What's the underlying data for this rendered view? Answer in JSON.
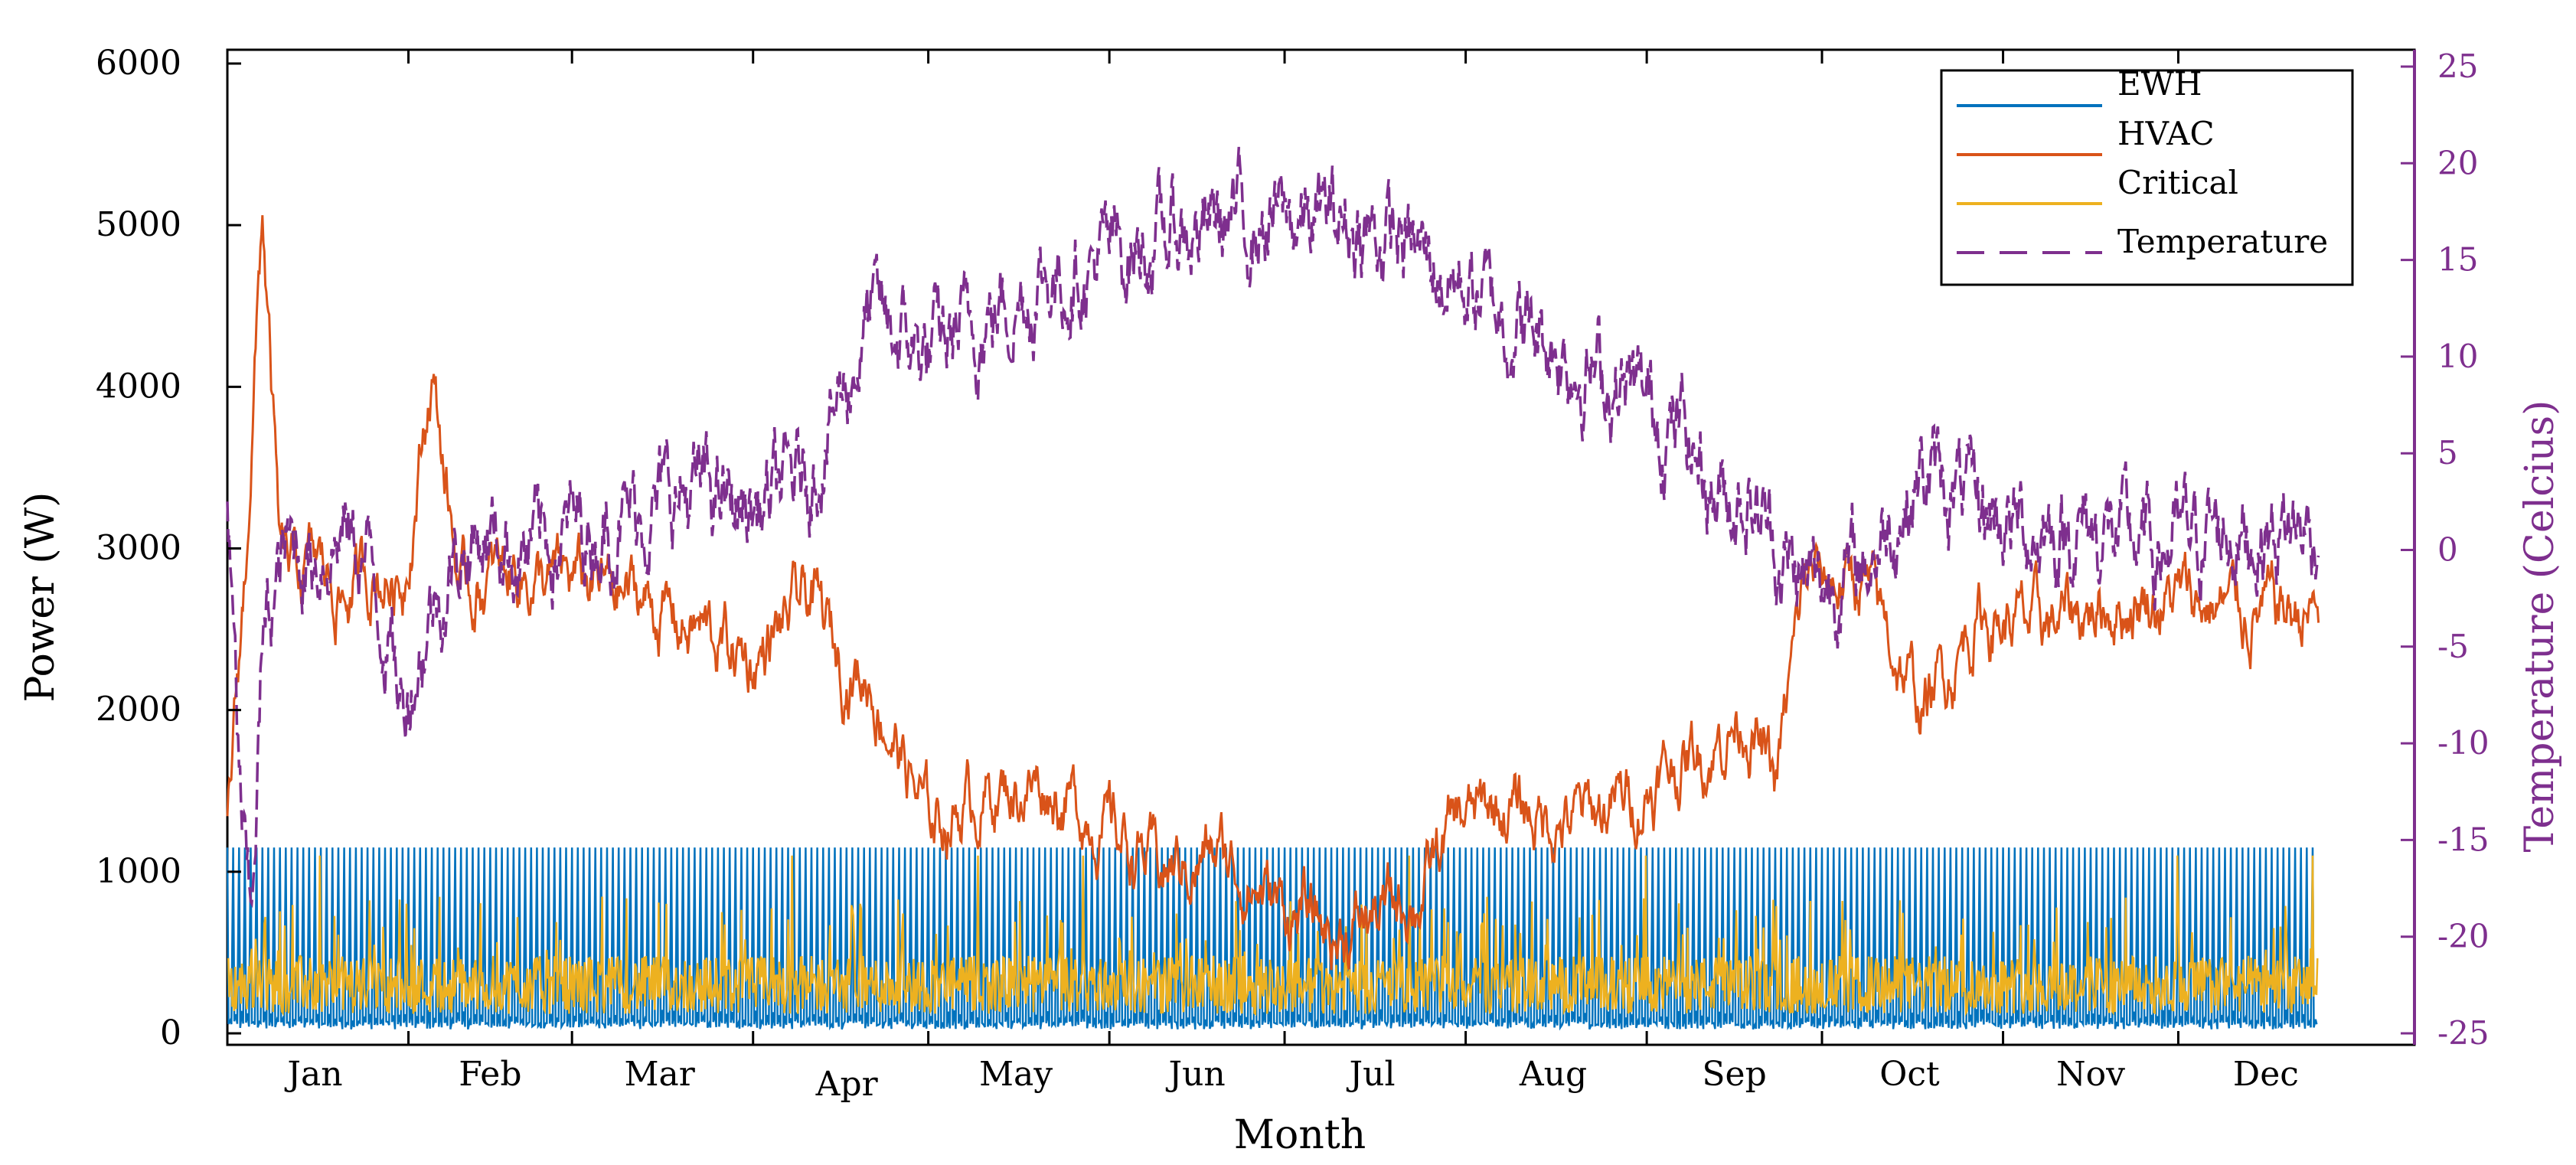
{
  "chart_data": {
    "type": "line",
    "title": "",
    "xlabel": "Month",
    "ylabel_left": "Power (W)",
    "ylabel_right": "Temperature (Celcius)",
    "ylim_left": [
      0,
      6000
    ],
    "ylim_right": [
      -25,
      25
    ],
    "left_ticks": [
      "0",
      "1000",
      "2000",
      "3000",
      "4000",
      "5000",
      "6000"
    ],
    "right_ticks": [
      "-25",
      "-20",
      "-15",
      "-10",
      "-5",
      "0",
      "5",
      "10",
      "15",
      "20",
      "25"
    ],
    "x_tick_labels": [
      "Jan",
      "Feb",
      "Mar",
      "Apr",
      "May",
      "Jun",
      "Jul",
      "Aug",
      "Sep",
      "Oct",
      "Nov",
      "Dec"
    ],
    "x_days": 365,
    "legend_position": "top-right",
    "colors": {
      "ewh": "#0072bd",
      "hvac": "#d95319",
      "critical": "#edb120",
      "temperature": "#7e2f8e",
      "right_axis": "#7e2f8e"
    },
    "series": [
      {
        "name": "EWH",
        "style": "solid",
        "axis": "left",
        "pattern": "daily spikes",
        "peak_value": 1150,
        "base_value": 50
      },
      {
        "name": "HVAC",
        "style": "solid",
        "axis": "left",
        "day": [
          0,
          3,
          6,
          9,
          12,
          15,
          20,
          25,
          30,
          35,
          40,
          45,
          50,
          55,
          60,
          70,
          80,
          90,
          100,
          105,
          110,
          120,
          130,
          140,
          150,
          160,
          170,
          180,
          190,
          200,
          205,
          210,
          220,
          230,
          240,
          250,
          255,
          260,
          265,
          270,
          280,
          290,
          300,
          310,
          320,
          330,
          340,
          350,
          357
        ],
        "values": [
          1300,
          2800,
          5100,
          2900,
          2800,
          2900,
          2700,
          2850,
          2800,
          4100,
          2700,
          2800,
          2900,
          2750,
          2800,
          2700,
          2500,
          2300,
          2700,
          2300,
          2200,
          1300,
          1500,
          1550,
          1300,
          1000,
          1100,
          800,
          600,
          800,
          900,
          1300,
          1400,
          1300,
          1450,
          1700,
          1800,
          2000,
          1500,
          2800,
          2800,
          2000,
          2600,
          2500,
          2650,
          2700,
          2650,
          2600,
          2600
        ]
      },
      {
        "name": "Critical",
        "style": "solid",
        "axis": "left",
        "pattern": "daily noise",
        "typical_value": 350,
        "peak_value": 1100
      },
      {
        "name": "Temperature",
        "style": "dashed",
        "axis": "right",
        "day": [
          0,
          2,
          4,
          6,
          10,
          15,
          20,
          25,
          30,
          35,
          40,
          45,
          50,
          60,
          70,
          80,
          90,
          100,
          110,
          120,
          130,
          140,
          150,
          160,
          170,
          180,
          190,
          200,
          210,
          220,
          230,
          240,
          250,
          255,
          260,
          270,
          280,
          290,
          300,
          310,
          320,
          330,
          340,
          350,
          357
        ],
        "values": [
          2,
          -12,
          -20,
          -5,
          0,
          0,
          1,
          -1,
          -8,
          -3,
          0,
          1,
          0,
          1,
          2,
          3,
          2,
          4,
          12,
          10,
          12,
          14,
          15,
          16,
          17,
          17,
          17,
          16,
          14,
          12,
          10,
          8,
          6,
          3,
          3,
          -2,
          -1,
          4,
          2,
          1,
          1,
          0,
          1,
          1,
          1
        ]
      }
    ]
  }
}
